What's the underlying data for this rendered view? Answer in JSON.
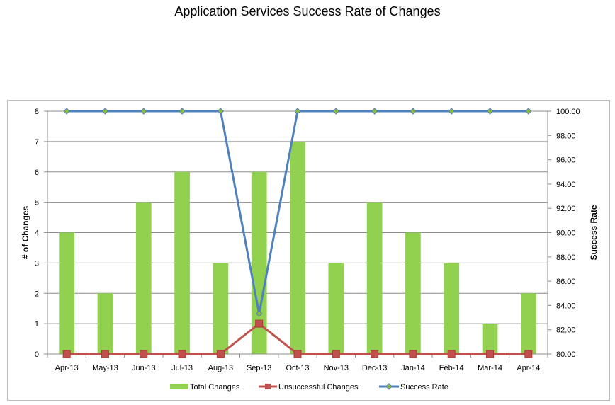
{
  "chart_data": {
    "type": "bar+line",
    "title": "Application Services Success Rate of Changes",
    "categories": [
      "Apr-13",
      "May-13",
      "Jun-13",
      "Jul-13",
      "Aug-13",
      "Sep-13",
      "Oct-13",
      "Nov-13",
      "Dec-13",
      "Jan-14",
      "Feb-14",
      "Mar-14",
      "Apr-14"
    ],
    "series": [
      {
        "name": "Total Changes",
        "type": "bar",
        "axis": "left",
        "color": "#92d050",
        "values": [
          4,
          2,
          5,
          6,
          3,
          6,
          7,
          3,
          5,
          4,
          3,
          1,
          2
        ]
      },
      {
        "name": "Unsuccessful Changes",
        "type": "line",
        "axis": "left",
        "color": "#c0504d",
        "marker": "square",
        "values": [
          0,
          0,
          0,
          0,
          0,
          1,
          0,
          0,
          0,
          0,
          0,
          0,
          0
        ]
      },
      {
        "name": "Success Rate",
        "type": "line",
        "axis": "right",
        "color": "#4f81bd",
        "marker": "diamond",
        "values": [
          100,
          100,
          100,
          100,
          100,
          83.33,
          100,
          100,
          100,
          100,
          100,
          100,
          100
        ]
      }
    ],
    "ylabel": "# of Changes",
    "ylim": [
      0,
      8
    ],
    "yticks": [
      "0",
      "1",
      "2",
      "3",
      "4",
      "5",
      "6",
      "7",
      "8"
    ],
    "y2label": "Success Rate",
    "y2lim": [
      80,
      100
    ],
    "y2ticks": [
      "80.00",
      "82.00",
      "84.00",
      "86.00",
      "88.00",
      "90.00",
      "92.00",
      "94.00",
      "96.00",
      "98.00",
      "100.00"
    ],
    "grid": true,
    "legend_position": "bottom"
  }
}
